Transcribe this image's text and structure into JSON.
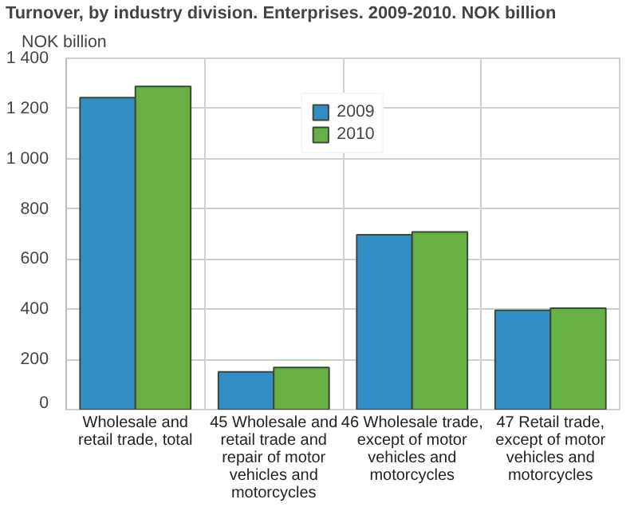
{
  "chart_data": {
    "type": "bar",
    "title": "Turnover, by industry division. Enterprises. 2009-2010. NOK billion",
    "ylabel": "NOK billion",
    "categories": [
      "Wholesale and retail trade, total",
      "45 Wholesale and retail trade and repair of motor vehicles and motorcycles",
      "46 Wholesale trade, except of motor vehicles and motorcycles",
      "47 Retail trade, except of motor vehicles and motorcycles"
    ],
    "series": [
      {
        "name": "2009",
        "color": "#348ec6",
        "values": [
          1243,
          150,
          697,
          395
        ]
      },
      {
        "name": "2010",
        "color": "#67b044",
        "values": [
          1288,
          168,
          708,
          404
        ]
      }
    ],
    "ylim": [
      0,
      1400
    ],
    "yticks": [
      0,
      200,
      400,
      600,
      800,
      {
        "value": 1000,
        "label": "1 000"
      },
      {
        "value": 1200,
        "label": "1 200"
      },
      {
        "value": 1400,
        "label": "1 400"
      }
    ],
    "grid": true,
    "legend": "top"
  }
}
